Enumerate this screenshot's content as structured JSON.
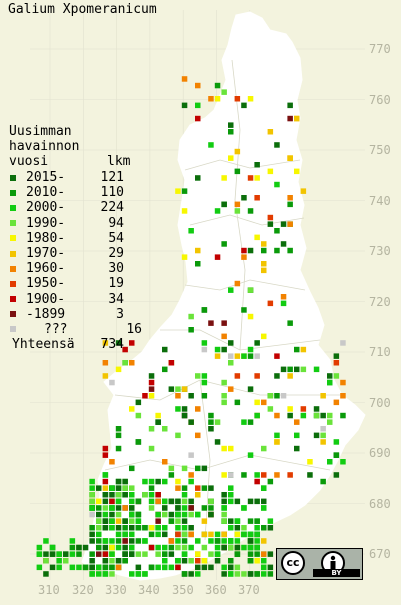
{
  "map": {
    "title": "Galium Xpomeranicum",
    "background": "#f3f3de",
    "land_color": "#ffffff",
    "grid_color": "#e2e2cf",
    "axis_label_color": "#b4b4a0"
  },
  "legend": {
    "header": [
      "Uusimman",
      "havainnon",
      "vuosi",
      "lkm"
    ],
    "entries": [
      {
        "label": "2015-",
        "count": "121",
        "color": "#0b6e0b"
      },
      {
        "label": "2010-",
        "count": "110",
        "color": "#0a9a0a"
      },
      {
        "label": "2000-",
        "count": "224",
        "color": "#12cc12"
      },
      {
        "label": "1990-",
        "count": "94",
        "color": "#6ae33a"
      },
      {
        "label": "1980-",
        "count": "54",
        "color": "#f7f700"
      },
      {
        "label": "1970-",
        "count": "29",
        "color": "#f2c400"
      },
      {
        "label": "1960-",
        "count": "30",
        "color": "#f28200"
      },
      {
        "label": "1950-",
        "count": "19",
        "color": "#e23b00"
      },
      {
        "label": "1900-",
        "count": "34",
        "color": "#c20000"
      },
      {
        "label": "-1899",
        "count": "3",
        "color": "#7a1010"
      },
      {
        "label": "???",
        "count": "16",
        "color": "#c8c8c8"
      }
    ],
    "total_label": "Yhteensä",
    "total_count": "734"
  },
  "axes": {
    "x_ticks": [
      "310",
      "320",
      "330",
      "340",
      "350",
      "360",
      "370"
    ],
    "y_ticks": [
      "770",
      "760",
      "750",
      "740",
      "730",
      "720",
      "710",
      "700",
      "690",
      "680",
      "670"
    ]
  },
  "license": {
    "cc": "cc",
    "by": "BY",
    "person_icon": "person-icon"
  }
}
